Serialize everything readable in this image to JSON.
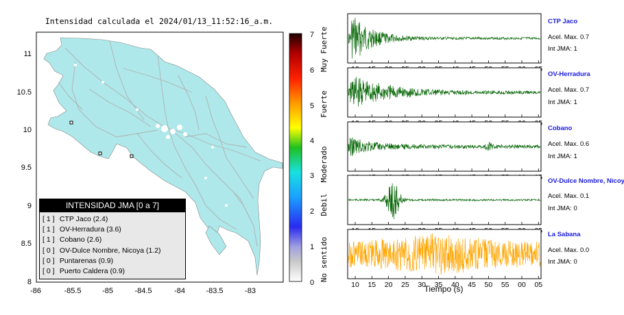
{
  "map": {
    "title": "Intensidad calculada el 2024/01/13_11:52:16_a.m.",
    "x_ticks": [
      "-86",
      "-85.5",
      "-85",
      "-84.5",
      "-84",
      "-83.5",
      "-83"
    ],
    "y_ticks": [
      "11",
      "10.5",
      "10",
      "9.5",
      "9",
      "8.5",
      "8"
    ],
    "colorbar_ticks": [
      "0",
      "1",
      "2",
      "3",
      "4",
      "5",
      "6",
      "7"
    ],
    "colorbar_labels": [
      "No sentido",
      "Debil",
      "Moderado",
      "Fuerte",
      "Muy Fuerte"
    ],
    "legend": {
      "title": "INTENSIDAD JMA [0 a 7]",
      "items": [
        {
          "level": "[ 1 ]",
          "text": "CTP Jaco (2.4)"
        },
        {
          "level": "[ 1 ]",
          "text": "OV-Herradura (3.6)"
        },
        {
          "level": "[ 1 ]",
          "text": "Cobano (2.6)"
        },
        {
          "level": "[ 0 ]",
          "text": "OV-Dulce Nombre, Nicoya (1.2)"
        },
        {
          "level": "[ 0 ]",
          "text": "Puntarenas (0.9)"
        },
        {
          "level": "[ 0 ]",
          "text": "Puerto Caldera (0.9)"
        }
      ]
    },
    "colors": {
      "land": "#aee8ea",
      "roads": "#b0b0b0"
    }
  },
  "waveforms": {
    "x_ticks": [
      "10",
      "15",
      "20",
      "25",
      "30",
      "35",
      "40",
      "45",
      "50",
      "55",
      "00",
      "05"
    ],
    "xlabel": "Tiempo (s)",
    "stations": [
      {
        "name": "CTP Jaco",
        "accel": "Acel. Max. 0.7",
        "jma": "Int JMA: 1",
        "color": "#0d6b0d"
      },
      {
        "name": "OV-Herradura",
        "accel": "Acel. Max. 0.7",
        "jma": "Int JMA: 1",
        "color": "#0d6b0d"
      },
      {
        "name": "Cobano",
        "accel": "Acel. Max. 0.6",
        "jma": "Int JMA: 1",
        "color": "#0d6b0d"
      },
      {
        "name": "OV-Dulce Nombre, Nicoya",
        "accel": "Acel. Max. 0.1",
        "jma": "Int JMA: 0",
        "color": "#0d6b0d"
      },
      {
        "name": "La Sabana",
        "accel": "Acel. Max. 0.0",
        "jma": "Int JMA: 0",
        "color": "#ffa500"
      }
    ]
  },
  "chart_data": [
    {
      "type": "heatmap",
      "title": "Intensidad calculada el 2024/01/13_11:52:16_a.m.",
      "xlim": [
        -86,
        -82.6
      ],
      "ylim": [
        8,
        11.3
      ],
      "colorbar_range": [
        0,
        7
      ],
      "legend_placement": "bottom-left"
    },
    {
      "type": "line",
      "xlabel": "Tiempo (s)",
      "x_ticks": [
        "10",
        "15",
        "20",
        "25",
        "30",
        "35",
        "40",
        "45",
        "50",
        "55",
        "00",
        "05"
      ],
      "series": [
        {
          "name": "CTP Jaco",
          "peak_accel": 0.7,
          "jma": 1
        },
        {
          "name": "OV-Herradura",
          "peak_accel": 0.7,
          "jma": 1
        },
        {
          "name": "Cobano",
          "peak_accel": 0.6,
          "jma": 1
        },
        {
          "name": "OV-Dulce Nombre, Nicoya",
          "peak_accel": 0.1,
          "jma": 0
        },
        {
          "name": "La Sabana",
          "peak_accel": 0.0,
          "jma": 0
        }
      ]
    }
  ]
}
